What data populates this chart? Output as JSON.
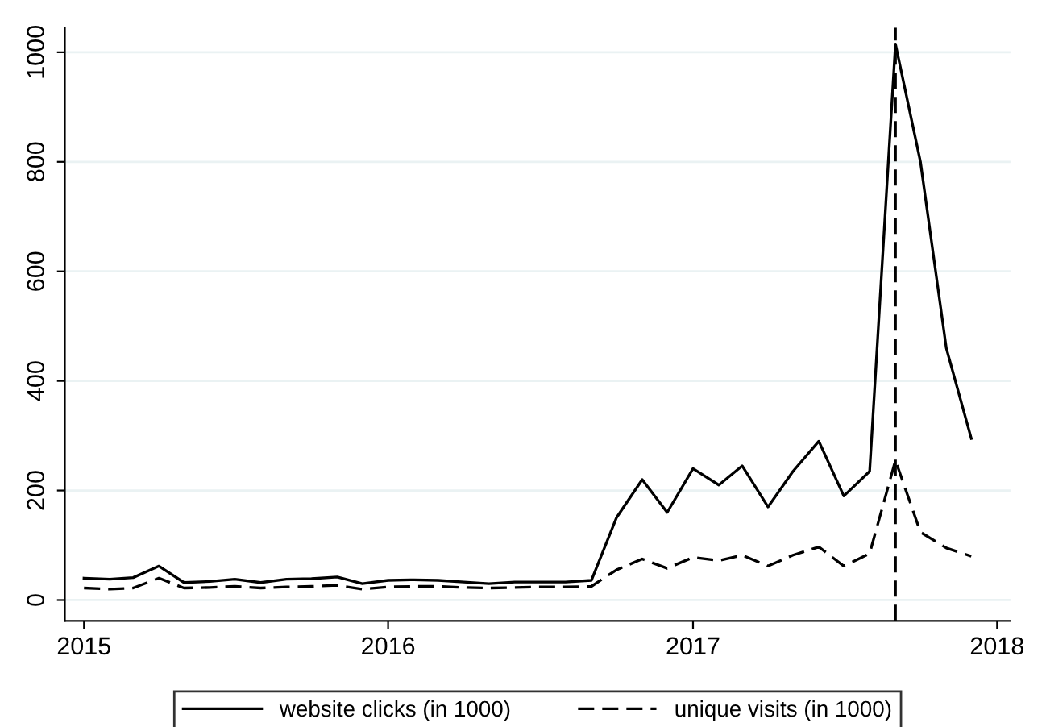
{
  "chart_data": {
    "type": "line",
    "x": [
      "2015-01",
      "2015-02",
      "2015-03",
      "2015-04",
      "2015-05",
      "2015-06",
      "2015-07",
      "2015-08",
      "2015-09",
      "2015-10",
      "2015-11",
      "2015-12",
      "2016-01",
      "2016-02",
      "2016-03",
      "2016-04",
      "2016-05",
      "2016-06",
      "2016-07",
      "2016-08",
      "2016-09",
      "2016-10",
      "2016-11",
      "2016-12",
      "2017-01",
      "2017-02",
      "2017-03",
      "2017-04",
      "2017-05",
      "2017-06",
      "2017-07",
      "2017-08",
      "2017-09",
      "2017-10",
      "2017-11",
      "2017-12"
    ],
    "series": [
      {
        "name": "website clicks (in 1000)",
        "color": "#000000",
        "line_style": "solid",
        "values": [
          40,
          38,
          41,
          62,
          32,
          34,
          38,
          32,
          38,
          39,
          42,
          30,
          36,
          37,
          36,
          33,
          30,
          33,
          33,
          33,
          36,
          150,
          220,
          160,
          240,
          210,
          245,
          170,
          235,
          290,
          190,
          235,
          1015,
          800,
          460,
          295
        ]
      },
      {
        "name": "unique visits (in 1000)",
        "color": "#000000",
        "line_style": "dashed",
        "values": [
          22,
          20,
          22,
          40,
          22,
          23,
          25,
          22,
          24,
          25,
          27,
          20,
          24,
          25,
          25,
          23,
          22,
          23,
          24,
          24,
          25,
          55,
          75,
          58,
          78,
          72,
          82,
          62,
          82,
          97,
          62,
          85,
          255,
          124,
          95,
          80
        ]
      }
    ],
    "xlim": [
      "2014-12-09",
      "2018-01-17"
    ],
    "xticks": [
      {
        "value": "2015-01-01",
        "label": "2015"
      },
      {
        "value": "2016-01-01",
        "label": "2016"
      },
      {
        "value": "2017-01-01",
        "label": "2017"
      },
      {
        "value": "2018-01-01",
        "label": "2018"
      }
    ],
    "ylim": [
      -38,
      1045
    ],
    "yticks": [
      0,
      200,
      400,
      600,
      800,
      1000
    ],
    "ref_lines": [
      {
        "axis": "x",
        "value": "2017-09",
        "color": "#000000",
        "line_style": "dashed"
      }
    ],
    "grid": "y",
    "legend": "bottom",
    "marker": "none"
  }
}
